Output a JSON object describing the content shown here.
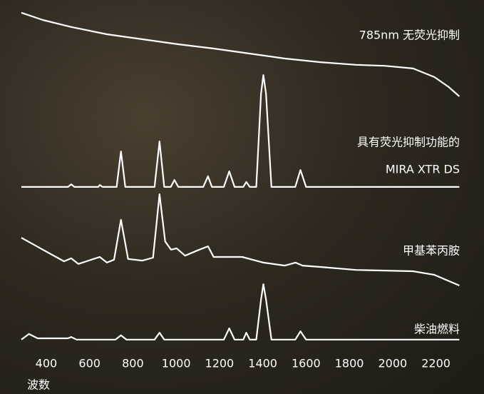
{
  "chart_data": {
    "type": "line",
    "xlabel": "波数",
    "xlim": [
      285,
      2310
    ],
    "xticks": [
      400,
      600,
      800,
      1000,
      1200,
      1400,
      1600,
      1800,
      2000,
      2200
    ],
    "ylim": [
      0,
      100
    ],
    "series": [
      {
        "name": "785nm 无荧光抑制",
        "color": "#ffffff",
        "x": [
          285,
          384,
          515,
          680,
          844,
          1009,
          1173,
          1338,
          1502,
          1666,
          1831,
          1962,
          2094,
          2193,
          2259,
          2308
        ],
        "values": [
          99.4,
          97.2,
          95.1,
          92.9,
          91.4,
          89.9,
          88.6,
          87.1,
          85.6,
          84.5,
          83.7,
          83.4,
          82.6,
          80.0,
          77.0,
          74.2
        ]
      },
      {
        "name": [
          "具有荧光抑制功能的",
          "MIRA XTR DS"
        ],
        "color": "#ffffff",
        "x": [
          285,
          500,
          515,
          530,
          640,
          647,
          660,
          725,
          745,
          765,
          900,
          923,
          945,
          975,
          992,
          1010,
          1125,
          1147,
          1165,
          1220,
          1245,
          1270,
          1310,
          1324,
          1340,
          1370,
          1392,
          1403,
          1415,
          1440,
          1550,
          1574,
          1600,
          2308
        ],
        "values": [
          46.9,
          46.9,
          47.7,
          46.9,
          46.9,
          47.5,
          46.9,
          46.9,
          57.6,
          46.9,
          46.9,
          60.6,
          46.9,
          46.9,
          49.0,
          46.9,
          46.9,
          50.1,
          46.9,
          46.9,
          51.6,
          46.9,
          46.9,
          48.4,
          46.9,
          46.9,
          75.0,
          80.6,
          75.0,
          46.9,
          46.9,
          52.0,
          46.9,
          46.9
        ]
      },
      {
        "name": "甲基苯丙胺",
        "color": "#ffffff",
        "x": [
          285,
          384,
          482,
          515,
          548,
          647,
          680,
          713,
          745,
          778,
          844,
          893,
          923,
          949,
          976,
          1002,
          1041,
          1107,
          1147,
          1173,
          1305,
          1403,
          1502,
          1551,
          1584,
          1666,
          1831,
          2094,
          2193,
          2308
        ],
        "values": [
          31.6,
          28.0,
          24.5,
          25.4,
          23.7,
          25.8,
          24.1,
          25.0,
          37.0,
          25.2,
          24.7,
          25.6,
          44.7,
          30.5,
          28.0,
          28.4,
          26.2,
          28.0,
          29.0,
          25.8,
          25.8,
          24.1,
          23.2,
          24.1,
          23.2,
          22.8,
          21.9,
          21.5,
          20.4,
          17.2
        ]
      },
      {
        "name": "柴油燃料",
        "color": "#ffffff",
        "x": [
          285,
          320,
          360,
          500,
          515,
          540,
          720,
          745,
          770,
          900,
          923,
          945,
          1220,
          1245,
          1270,
          1310,
          1324,
          1340,
          1370,
          1392,
          1403,
          1415,
          1440,
          1550,
          1574,
          1600,
          2308
        ],
        "values": [
          0.9,
          2.6,
          1.3,
          1.3,
          1.7,
          0.9,
          0.9,
          2.2,
          0.9,
          0.9,
          3.0,
          0.9,
          0.9,
          4.3,
          0.9,
          0.9,
          3.0,
          0.9,
          0.9,
          13.0,
          17.6,
          13.0,
          0.9,
          0.9,
          3.4,
          0.9,
          0.9
        ]
      }
    ]
  }
}
